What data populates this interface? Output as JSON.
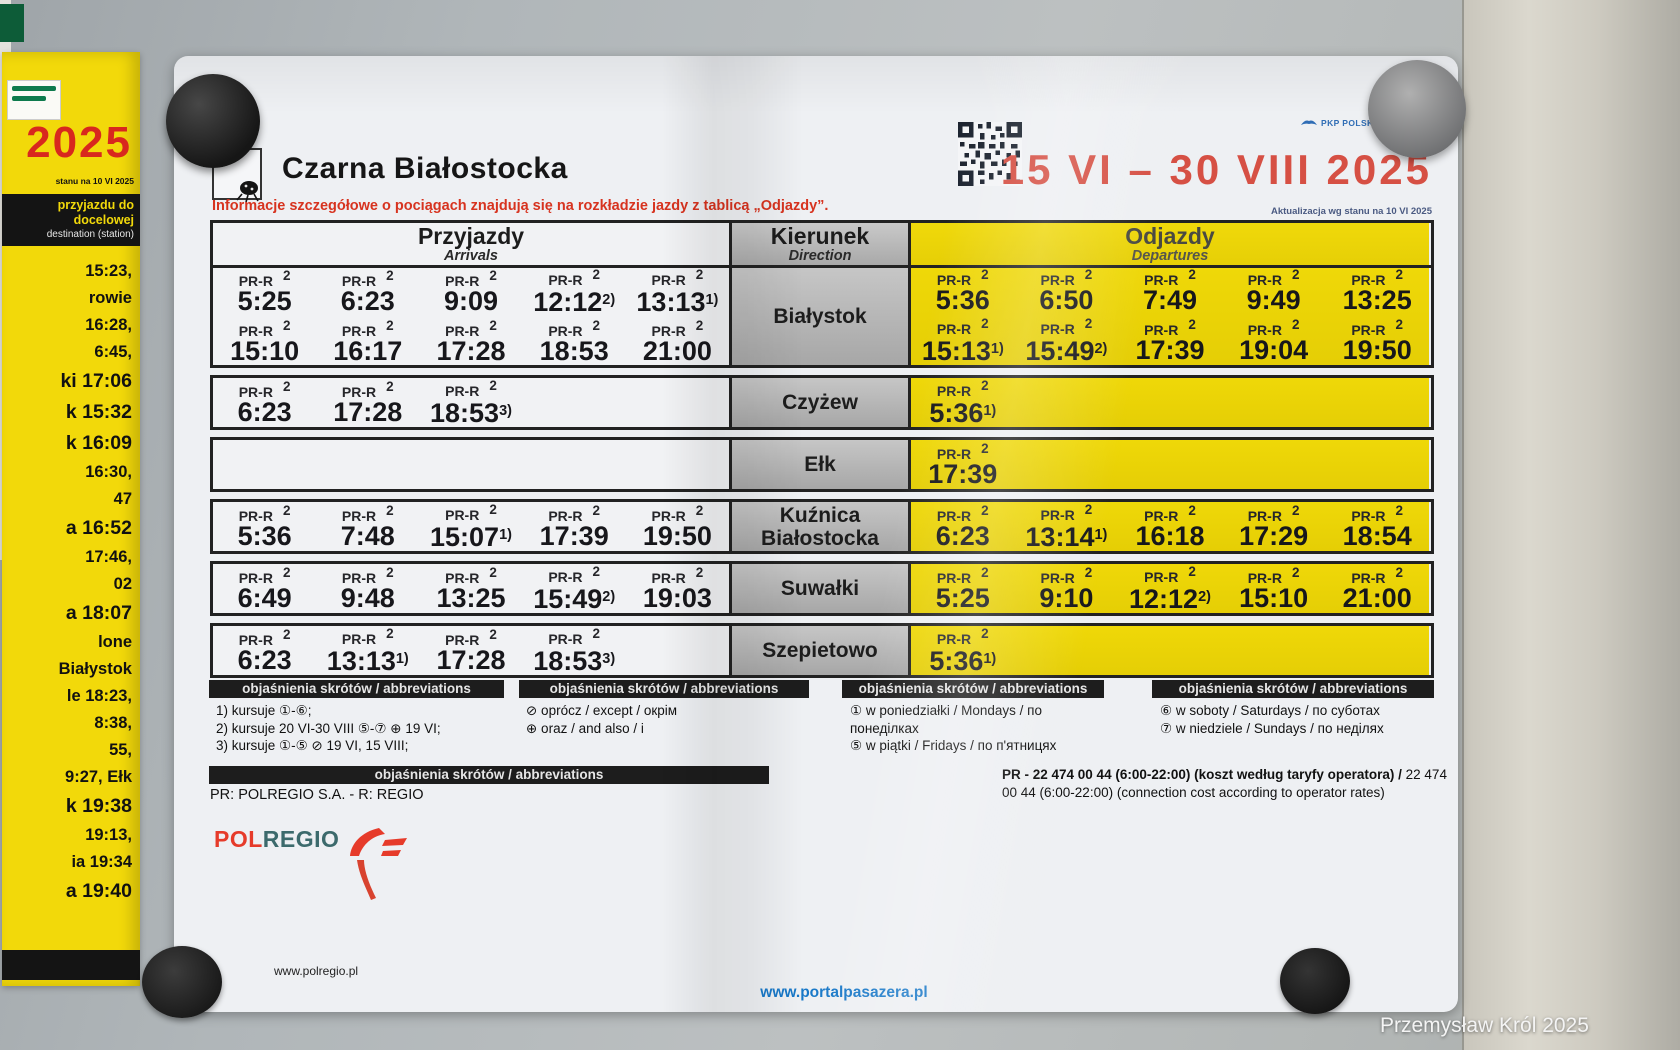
{
  "colors": {
    "departures_yellow": "#eed606",
    "direction_gray": "#b5b5b5",
    "accent_red": "#d65044",
    "info_red": "#d7331f",
    "link_blue": "#1878c8",
    "pkp_blue": "#2f6db5",
    "polregio_red": "#e63b2a",
    "polregio_teal": "#3c6a6c",
    "left_poster_yellow": "#f2d90a"
  },
  "header": {
    "station": "Czarna Białostocka",
    "validity": "15 VI – 30 VIII 2025",
    "pkp_logo_text": "PKP POLSKIE LINIE",
    "update_note": "Aktualizacja wg stanu na 10 VI 2025",
    "info_line": "Informacje szczegółowe o pociągach znajdują się na rozkładzie jazdy z tablicą „Odjazdy”."
  },
  "table": {
    "arrivals_title": "Przyjazdy",
    "arrivals_subtitle": "Arrivals",
    "direction_title": "Kierunek",
    "direction_subtitle": "Direction",
    "departures_title": "Odjazdy",
    "departures_subtitle": "Departures",
    "rows": [
      {
        "direction": "Białystok",
        "arrivals": [
          {
            "c": "PR-R",
            "s": "2",
            "t": "5:25",
            "n": ""
          },
          {
            "c": "PR-R",
            "s": "2",
            "t": "6:23",
            "n": ""
          },
          {
            "c": "PR-R",
            "s": "2",
            "t": "9:09",
            "n": ""
          },
          {
            "c": "PR-R",
            "s": "2",
            "t": "12:12",
            "n": "2)"
          },
          {
            "c": "PR-R",
            "s": "2",
            "t": "13:13",
            "n": "1)"
          },
          {
            "c": "PR-R",
            "s": "2",
            "t": "15:10",
            "n": ""
          },
          {
            "c": "PR-R",
            "s": "2",
            "t": "16:17",
            "n": ""
          },
          {
            "c": "PR-R",
            "s": "2",
            "t": "17:28",
            "n": ""
          },
          {
            "c": "PR-R",
            "s": "2",
            "t": "18:53",
            "n": ""
          },
          {
            "c": "PR-R",
            "s": "2",
            "t": "21:00",
            "n": ""
          }
        ],
        "departures": [
          {
            "c": "PR-R",
            "s": "2",
            "t": "5:36",
            "n": ""
          },
          {
            "c": "PR-R",
            "s": "2",
            "t": "6:50",
            "n": ""
          },
          {
            "c": "PR-R",
            "s": "2",
            "t": "7:49",
            "n": ""
          },
          {
            "c": "PR-R",
            "s": "2",
            "t": "9:49",
            "n": ""
          },
          {
            "c": "PR-R",
            "s": "2",
            "t": "13:25",
            "n": ""
          },
          {
            "c": "PR-R",
            "s": "2",
            "t": "15:13",
            "n": "1)"
          },
          {
            "c": "PR-R",
            "s": "2",
            "t": "15:49",
            "n": "2)"
          },
          {
            "c": "PR-R",
            "s": "2",
            "t": "17:39",
            "n": ""
          },
          {
            "c": "PR-R",
            "s": "2",
            "t": "19:04",
            "n": ""
          },
          {
            "c": "PR-R",
            "s": "2",
            "t": "19:50",
            "n": ""
          }
        ]
      },
      {
        "direction": "Czyżew",
        "arrivals": [
          {
            "c": "PR-R",
            "s": "2",
            "t": "6:23",
            "n": ""
          },
          {
            "c": "PR-R",
            "s": "2",
            "t": "17:28",
            "n": ""
          },
          {
            "c": "PR-R",
            "s": "2",
            "t": "18:53",
            "n": "3)"
          }
        ],
        "departures": [
          {
            "c": "PR-R",
            "s": "2",
            "t": "5:36",
            "n": "1)"
          }
        ]
      },
      {
        "direction": "Ełk",
        "arrivals": [],
        "departures": [
          {
            "c": "PR-R",
            "s": "2",
            "t": "17:39",
            "n": ""
          }
        ]
      },
      {
        "direction": "Kuźnica\nBiałostocka",
        "arrivals": [
          {
            "c": "PR-R",
            "s": "2",
            "t": "5:36",
            "n": ""
          },
          {
            "c": "PR-R",
            "s": "2",
            "t": "7:48",
            "n": ""
          },
          {
            "c": "PR-R",
            "s": "2",
            "t": "15:07",
            "n": "1)"
          },
          {
            "c": "PR-R",
            "s": "2",
            "t": "17:39",
            "n": ""
          },
          {
            "c": "PR-R",
            "s": "2",
            "t": "19:50",
            "n": ""
          }
        ],
        "departures": [
          {
            "c": "PR-R",
            "s": "2",
            "t": "6:23",
            "n": ""
          },
          {
            "c": "PR-R",
            "s": "2",
            "t": "13:14",
            "n": "1)"
          },
          {
            "c": "PR-R",
            "s": "2",
            "t": "16:18",
            "n": ""
          },
          {
            "c": "PR-R",
            "s": "2",
            "t": "17:29",
            "n": ""
          },
          {
            "c": "PR-R",
            "s": "2",
            "t": "18:54",
            "n": ""
          }
        ]
      },
      {
        "direction": "Suwałki",
        "arrivals": [
          {
            "c": "PR-R",
            "s": "2",
            "t": "6:49",
            "n": ""
          },
          {
            "c": "PR-R",
            "s": "2",
            "t": "9:48",
            "n": ""
          },
          {
            "c": "PR-R",
            "s": "2",
            "t": "13:25",
            "n": ""
          },
          {
            "c": "PR-R",
            "s": "2",
            "t": "15:49",
            "n": "2)"
          },
          {
            "c": "PR-R",
            "s": "2",
            "t": "19:03",
            "n": ""
          }
        ],
        "departures": [
          {
            "c": "PR-R",
            "s": "2",
            "t": "5:25",
            "n": ""
          },
          {
            "c": "PR-R",
            "s": "2",
            "t": "9:10",
            "n": ""
          },
          {
            "c": "PR-R",
            "s": "2",
            "t": "12:12",
            "n": "2)"
          },
          {
            "c": "PR-R",
            "s": "2",
            "t": "15:10",
            "n": ""
          },
          {
            "c": "PR-R",
            "s": "2",
            "t": "21:00",
            "n": ""
          }
        ]
      },
      {
        "direction": "Szepietowo",
        "arrivals": [
          {
            "c": "PR-R",
            "s": "2",
            "t": "6:23",
            "n": ""
          },
          {
            "c": "PR-R",
            "s": "2",
            "t": "13:13",
            "n": "1)"
          },
          {
            "c": "PR-R",
            "s": "2",
            "t": "17:28",
            "n": ""
          },
          {
            "c": "PR-R",
            "s": "2",
            "t": "18:53",
            "n": "3)"
          }
        ],
        "departures": [
          {
            "c": "PR-R",
            "s": "2",
            "t": "5:36",
            "n": "1)"
          }
        ]
      }
    ]
  },
  "footnotes": {
    "header": "objaśnienia skrótów / abbreviations",
    "col1": [
      "1) kursuje ①-⑥;",
      "2) kursuje 20 VI-30 VIII ⑤-⑦ ⊕ 19 VI;",
      "3) kursuje ①-⑤ ⊘ 19 VI, 15 VIII;"
    ],
    "col2": [
      "⊘ oprócz / except / окрім",
      "⊕ oraz / and also / i"
    ],
    "col3": [
      "① w poniedziałki / Mondays / по понеділках",
      "⑤ w piątki / Fridays / по п'ятницях"
    ],
    "col4": [
      "⑥ w soboty / Saturdays / по суботах",
      "⑦ w niedziele / Sundays / по неділях"
    ]
  },
  "carrier_legend": {
    "header": "objaśnienia skrótów / abbreviations",
    "text": "PR: POLREGIO S.A. - R: REGIO"
  },
  "contact": {
    "bold": "PR - 22 474 00 44 (6:00-22:00) (koszt według taryfy operatora) /",
    "regular": " 22 474 00 44 (6:00-22:00) (connection cost according to operator rates)"
  },
  "brand": {
    "pol": "POL",
    "regio": "REGIO",
    "url": "www.polregio.pl"
  },
  "portal_url": "www.portalpasazera.pl",
  "left_poster": {
    "year": "2025",
    "note": "stanu na 10 VI 2025",
    "header_lines": [
      "przyjazdu do",
      "docelowej",
      "destination (station)"
    ],
    "lines": [
      {
        "t": "15:23,"
      },
      {
        "t": "rowie"
      },
      {
        "t": "16:28,"
      },
      {
        "t": "6:45,"
      },
      {
        "t": "ki 17:06",
        "b": 1
      },
      {
        "t": "k 15:32",
        "b": 1
      },
      {
        "t": "k 16:09",
        "b": 1
      },
      {
        "t": "16:30,"
      },
      {
        "t": "47"
      },
      {
        "t": "a 16:52",
        "b": 1
      },
      {
        "t": "17:46,"
      },
      {
        "t": "02"
      },
      {
        "t": "a 18:07",
        "b": 1
      },
      {
        "t": "lone"
      },
      {
        "t": "Białystok"
      },
      {
        "t": "le 18:23,"
      },
      {
        "t": "8:38,"
      },
      {
        "t": "55,"
      },
      {
        "t": "9:27, Ełk"
      },
      {
        "t": "k 19:38",
        "b": 1
      },
      {
        "t": "19:13,"
      },
      {
        "t": "ia 19:34"
      },
      {
        "t": "a 19:40",
        "b": 1
      }
    ]
  },
  "photo_credit": "Przemysław Król 2025"
}
